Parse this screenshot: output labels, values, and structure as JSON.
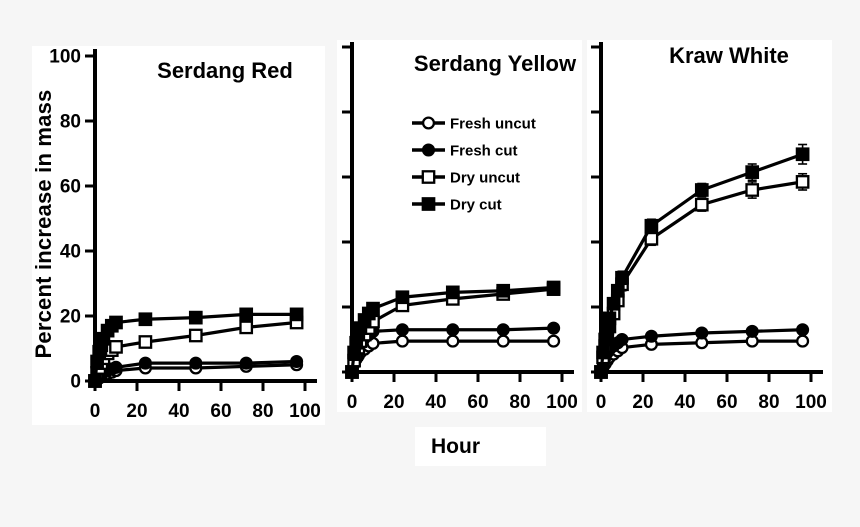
{
  "figure": {
    "y_axis_label": "Percent increase in mass",
    "x_axis_label": "Hour",
    "colors": {
      "background": "#f6f6f6",
      "panel": "#ffffff",
      "ink": "#000000"
    }
  },
  "legend": [
    {
      "label": "Fresh uncut",
      "marker": "circle-open"
    },
    {
      "label": "Fresh cut",
      "marker": "circle-filled"
    },
    {
      "label": "Dry uncut",
      "marker": "square-open"
    },
    {
      "label": "Dry cut",
      "marker": "square-filled"
    }
  ],
  "chart_data": [
    {
      "type": "line",
      "title": "Serdang Red",
      "xlabel": "Hour",
      "ylabel": "Percent increase in mass",
      "x": [
        0,
        1,
        2,
        3,
        4,
        6,
        8,
        10,
        24,
        48,
        72,
        96
      ],
      "xlim": [
        0,
        100
      ],
      "ylim": [
        0,
        100
      ],
      "xticks": [
        0,
        20,
        40,
        60,
        80,
        100
      ],
      "yticks": [
        0,
        20,
        40,
        60,
        80,
        100
      ],
      "y_tick_labels_visible": true,
      "grid": false,
      "series": [
        {
          "name": "Fresh uncut",
          "marker": "circle-open",
          "values": [
            0,
            0.4,
            0.9,
            1.3,
            1.7,
            2.2,
            2.7,
            3.2,
            4,
            4,
            4.5,
            5
          ]
        },
        {
          "name": "Fresh cut",
          "marker": "circle-filled",
          "values": [
            0,
            0.8,
            1.5,
            2.1,
            2.6,
            3.2,
            3.7,
            4.2,
            5.5,
            5.5,
            5.5,
            6
          ]
        },
        {
          "name": "Dry uncut",
          "marker": "square-open",
          "values": [
            0,
            2.5,
            4,
            5.5,
            7,
            8.5,
            9.5,
            10.5,
            12,
            14,
            16.5,
            18
          ],
          "errors": [
            0,
            0,
            0,
            0,
            0,
            0,
            0,
            0,
            1,
            1,
            1,
            1
          ]
        },
        {
          "name": "Dry cut",
          "marker": "square-filled",
          "values": [
            0,
            6,
            9,
            11,
            13,
            15.5,
            17,
            18,
            19,
            19.5,
            20.5,
            20.5
          ],
          "errors": [
            0,
            0,
            0,
            0,
            0,
            0,
            0,
            0,
            1,
            1,
            1,
            1
          ]
        }
      ]
    },
    {
      "type": "line",
      "title": "Serdang Yellow",
      "xlabel": "Hour",
      "ylabel": "Percent increase in mass",
      "x": [
        0,
        1,
        2,
        3,
        4,
        6,
        8,
        10,
        24,
        48,
        72,
        96
      ],
      "xlim": [
        0,
        100
      ],
      "ylim": [
        0,
        100
      ],
      "xticks": [
        0,
        20,
        40,
        60,
        80,
        100
      ],
      "yticks": [
        0,
        20,
        40,
        60,
        80,
        100
      ],
      "y_tick_labels_visible": false,
      "grid": false,
      "legend_position": "upper-left-of-plot",
      "series": [
        {
          "name": "Fresh uncut",
          "marker": "circle-open",
          "values": [
            0,
            2.5,
            4,
            5,
            6,
            7,
            8,
            8.8,
            9.5,
            9.5,
            9.5,
            9.5
          ]
        },
        {
          "name": "Fresh cut",
          "marker": "circle-filled",
          "values": [
            0,
            4,
            6,
            7.5,
            9,
            10.5,
            11.5,
            12.5,
            13,
            13,
            13,
            13.5
          ]
        },
        {
          "name": "Dry uncut",
          "marker": "square-open",
          "values": [
            0,
            3.5,
            5.5,
            7.5,
            9.5,
            11.5,
            13.5,
            15.5,
            20.5,
            22.5,
            24,
            25.5
          ],
          "errors": [
            0,
            0,
            0,
            0,
            0,
            0,
            0,
            0,
            1,
            1,
            1,
            1
          ]
        },
        {
          "name": "Dry cut",
          "marker": "square-filled",
          "values": [
            0,
            6,
            9,
            11.5,
            13.5,
            16,
            18,
            19.5,
            23,
            24.5,
            25,
            26
          ],
          "errors": [
            0,
            0,
            0,
            0,
            0,
            0,
            0,
            0,
            1,
            1,
            1,
            1.2
          ]
        }
      ]
    },
    {
      "type": "line",
      "title": "Kraw White",
      "xlabel": "Hour",
      "ylabel": "Percent increase in mass",
      "x": [
        0,
        1,
        2,
        3,
        4,
        6,
        8,
        10,
        24,
        48,
        72,
        96
      ],
      "xlim": [
        0,
        100
      ],
      "ylim": [
        0,
        100
      ],
      "xticks": [
        0,
        20,
        40,
        60,
        80,
        100
      ],
      "yticks": [
        0,
        20,
        40,
        60,
        80,
        100
      ],
      "y_tick_labels_visible": false,
      "grid": false,
      "series": [
        {
          "name": "Fresh uncut",
          "marker": "circle-open",
          "values": [
            0,
            1.5,
            2.5,
            3.5,
            4.5,
            5.5,
            6.5,
            7.5,
            8.5,
            9,
            9.5,
            9.5
          ]
        },
        {
          "name": "Fresh cut",
          "marker": "circle-filled",
          "values": [
            0,
            3,
            4.5,
            6,
            7,
            8,
            9,
            10,
            11,
            12,
            12.5,
            13
          ]
        },
        {
          "name": "Dry uncut",
          "marker": "square-open",
          "values": [
            0,
            4.5,
            8,
            11,
            14,
            18,
            22,
            27,
            41,
            51.5,
            56,
            58.5
          ],
          "errors": [
            0,
            0,
            0,
            0,
            0,
            0,
            1.5,
            2,
            2,
            2,
            2.5,
            2.5
          ]
        },
        {
          "name": "Dry cut",
          "marker": "square-filled",
          "values": [
            0,
            6,
            10,
            13.5,
            16.5,
            21,
            25,
            29,
            45,
            56,
            61.5,
            67
          ],
          "errors": [
            0,
            0,
            0,
            0,
            0,
            0,
            1.5,
            2,
            2,
            2,
            2.5,
            3
          ]
        }
      ]
    }
  ]
}
